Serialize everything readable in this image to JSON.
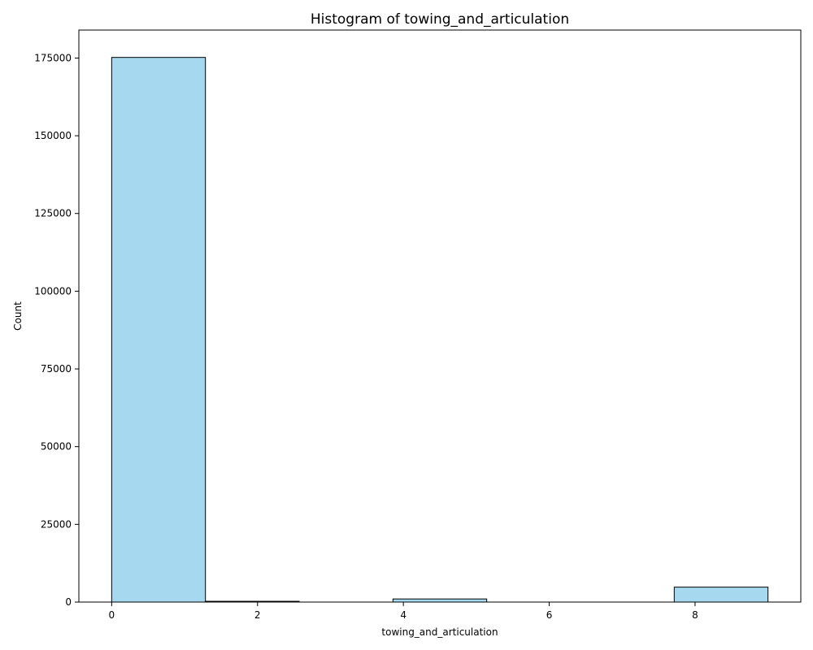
{
  "chart_data": {
    "type": "bar",
    "title": "Histogram of towing_and_articulation",
    "xlabel": "towing_and_articulation",
    "ylabel": "Count",
    "xlim": [
      -0.45,
      9.45
    ],
    "ylim": [
      0,
      184000
    ],
    "xticks": [
      0,
      2,
      4,
      6,
      8
    ],
    "yticks": [
      0,
      25000,
      50000,
      75000,
      100000,
      125000,
      150000,
      175000
    ],
    "bin_edges": [
      0,
      1.2857,
      2.5714,
      3.8571,
      5.1429,
      6.4286,
      7.7143,
      9
    ],
    "values": [
      175200,
      250,
      0,
      1000,
      0,
      0,
      4800
    ],
    "grid": false,
    "colors": {
      "bar_fill": "#a6d9ef",
      "bar_edge": "#000000"
    }
  }
}
